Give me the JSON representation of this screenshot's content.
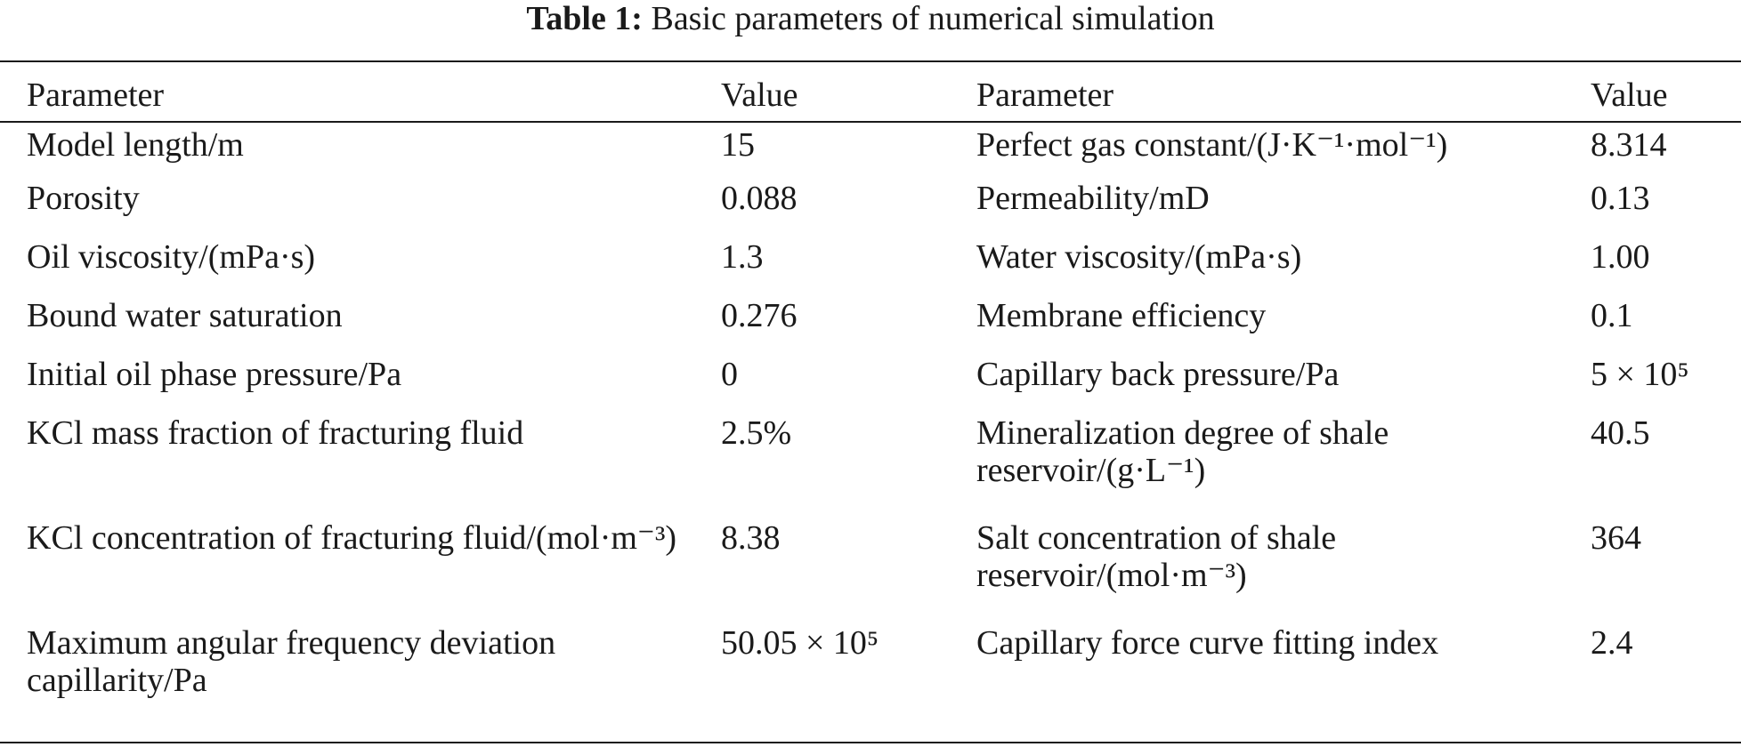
{
  "caption": {
    "label": "Table 1:",
    "title": "Basic parameters of numerical simulation"
  },
  "headers": [
    "Parameter",
    "Value",
    "Parameter",
    "Value"
  ],
  "rows": [
    [
      "Model length/m",
      "15",
      "Perfect gas constant/(J·K⁻¹·mol⁻¹)",
      "8.314"
    ],
    [
      "Porosity",
      "0.088",
      "Permeability/mD",
      "0.13"
    ],
    [
      "Oil viscosity/(mPa·s)",
      "1.3",
      "Water viscosity/(mPa·s)",
      "1.00"
    ],
    [
      "Bound water saturation",
      "0.276",
      "Membrane efficiency",
      "0.1"
    ],
    [
      "Initial oil phase pressure/Pa",
      "0",
      "Capillary back pressure/Pa",
      "5 × 10⁵"
    ],
    [
      "KCl mass fraction of fracturing fluid",
      "2.5%",
      "Mineralization degree of shale reservoir/(g·L⁻¹)",
      "40.5"
    ],
    [
      "KCl concentration of fracturing fluid/(mol·m⁻³)",
      "8.38",
      "Salt concentration of shale reservoir/(mol·m⁻³)",
      "364"
    ],
    [
      "Maximum angular frequency deviation capillarity/Pa",
      "50.05 × 10⁵",
      "Capillary force curve fitting index",
      "2.4"
    ]
  ]
}
